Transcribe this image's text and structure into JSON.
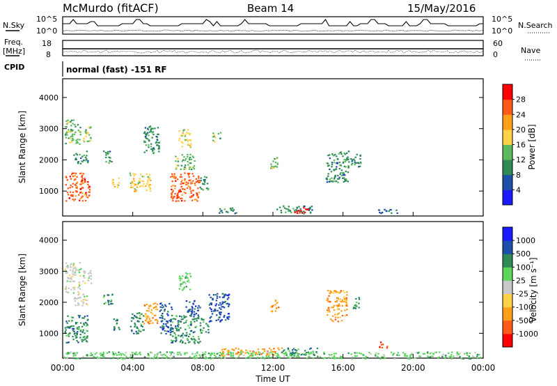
{
  "header": {
    "station": "McMurdo (fitACF)",
    "beam": "Beam 14",
    "date": "15/May/2016"
  },
  "summary": {
    "nsky_label": "N.Sky",
    "nsky_ticks": [
      "10^5",
      "10^0"
    ],
    "nsearch_label": "N.Search",
    "nsearch_ticks": [
      "10^5",
      "10^0"
    ],
    "freq_label": "Freq.",
    "freq_unit": "[MHz]",
    "freq_ticks": [
      "18",
      "8"
    ],
    "nave_label": "Nave",
    "nave_ticks": [
      "60",
      "0"
    ],
    "cpid_label": "CPID",
    "cpid_value": "normal (fast) -151 RF"
  },
  "colors": {
    "power": [
      "#1a1aff",
      "#1e4fa8",
      "#2e8b57",
      "#5cb85c",
      "#ffd24a",
      "#ff9f1a",
      "#ff5a1a",
      "#ff0000"
    ],
    "velocity": [
      "#ff0000",
      "#ff5a1a",
      "#ff9f1a",
      "#ffd24a",
      "#c8c8c8",
      "#5cd65c",
      "#2e8b57",
      "#1e4fa8",
      "#1a1aff"
    ]
  },
  "chart_data": [
    {
      "type": "heatmap",
      "name": "power",
      "ylabel": "Slant Range [km]",
      "xlabel": "Time UT",
      "y_ticks": [
        1000,
        2000,
        3000,
        4000
      ],
      "ylim": [
        200,
        4600
      ],
      "xlim": [
        0,
        24
      ],
      "colorbar_label": "Power [dB]",
      "colorbar_ticks": [
        "28",
        "24",
        "20",
        "16",
        "12",
        "8",
        "4"
      ],
      "clusters": [
        {
          "t0": 0.1,
          "t1": 1.5,
          "r0": 700,
          "r1": 1600,
          "c": 6
        },
        {
          "t0": 0.1,
          "t1": 1.0,
          "r0": 2500,
          "r1": 3300,
          "c": 3
        },
        {
          "t0": 0.6,
          "t1": 1.4,
          "r0": 1900,
          "r1": 2300,
          "c": 2
        },
        {
          "t0": 1.1,
          "t1": 1.6,
          "r0": 2600,
          "r1": 3100,
          "c": 3
        },
        {
          "t0": 2.3,
          "t1": 2.8,
          "r0": 1900,
          "r1": 2300,
          "c": 2
        },
        {
          "t0": 2.8,
          "t1": 3.2,
          "r0": 1100,
          "r1": 1500,
          "c": 4
        },
        {
          "t0": 3.8,
          "t1": 5.0,
          "r0": 1000,
          "r1": 1600,
          "c": 4
        },
        {
          "t0": 4.6,
          "t1": 5.5,
          "r0": 2200,
          "r1": 3100,
          "c": 2
        },
        {
          "t0": 6.1,
          "t1": 7.8,
          "r0": 700,
          "r1": 1600,
          "c": 6
        },
        {
          "t0": 6.4,
          "t1": 7.5,
          "r0": 1700,
          "r1": 2200,
          "c": 3
        },
        {
          "t0": 6.6,
          "t1": 7.3,
          "r0": 2400,
          "r1": 3000,
          "c": 4
        },
        {
          "t0": 7.8,
          "t1": 8.3,
          "r0": 1000,
          "r1": 1500,
          "c": 2
        },
        {
          "t0": 8.5,
          "t1": 9.0,
          "r0": 2600,
          "r1": 2900,
          "c": 3
        },
        {
          "t0": 8.8,
          "t1": 10.0,
          "r0": 300,
          "r1": 500,
          "c": 2
        },
        {
          "t0": 11.8,
          "t1": 12.3,
          "r0": 1700,
          "r1": 2100,
          "c": 3
        },
        {
          "t0": 12.2,
          "t1": 14.2,
          "r0": 300,
          "r1": 550,
          "c": 2
        },
        {
          "t0": 13.2,
          "t1": 14.0,
          "r0": 300,
          "r1": 500,
          "c": 7
        },
        {
          "t0": 15.0,
          "t1": 16.3,
          "r0": 1300,
          "r1": 2300,
          "c": 2
        },
        {
          "t0": 16.3,
          "t1": 17.0,
          "r0": 1800,
          "r1": 2200,
          "c": 2
        },
        {
          "t0": 18.0,
          "t1": 19.2,
          "r0": 300,
          "r1": 450,
          "c": 1
        }
      ]
    },
    {
      "type": "heatmap",
      "name": "velocity",
      "ylabel": "Slant Range [km]",
      "xlabel": "Time UT",
      "y_ticks": [
        1000,
        2000,
        3000,
        4000
      ],
      "x_ticks": [
        "00:00",
        "04:00",
        "08:00",
        "12:00",
        "16:00",
        "20:00",
        "00:00"
      ],
      "ylim": [
        200,
        4600
      ],
      "xlim": [
        0,
        24
      ],
      "colorbar_label": "Velocity [m s⁻¹]",
      "colorbar_ticks": [
        "1000",
        "500",
        "100",
        "25",
        "-25",
        "-100",
        "-500",
        "-1000"
      ],
      "clusters": [
        {
          "t0": 0.1,
          "t1": 1.4,
          "r0": 700,
          "r1": 1600,
          "c": 6
        },
        {
          "t0": 0.1,
          "t1": 1.0,
          "r0": 2300,
          "r1": 3300,
          "c": 4
        },
        {
          "t0": 0.6,
          "t1": 1.4,
          "r0": 1900,
          "r1": 2300,
          "c": 4
        },
        {
          "t0": 1.1,
          "t1": 1.6,
          "r0": 2600,
          "r1": 3100,
          "c": 4
        },
        {
          "t0": 2.3,
          "t1": 2.8,
          "r0": 1900,
          "r1": 2300,
          "c": 6
        },
        {
          "t0": 2.8,
          "t1": 3.2,
          "r0": 1100,
          "r1": 1500,
          "c": 6
        },
        {
          "t0": 3.8,
          "t1": 4.6,
          "r0": 1000,
          "r1": 1700,
          "c": 6
        },
        {
          "t0": 4.6,
          "t1": 5.4,
          "r0": 1300,
          "r1": 2000,
          "c": 2
        },
        {
          "t0": 5.5,
          "t1": 6.2,
          "r0": 1000,
          "r1": 2000,
          "c": 7
        },
        {
          "t0": 6.1,
          "t1": 7.8,
          "r0": 700,
          "r1": 1600,
          "c": 6
        },
        {
          "t0": 6.6,
          "t1": 7.3,
          "r0": 2400,
          "r1": 3000,
          "c": 5
        },
        {
          "t0": 7.0,
          "t1": 7.8,
          "r0": 1600,
          "r1": 2100,
          "c": 7
        },
        {
          "t0": 7.8,
          "t1": 8.3,
          "r0": 1000,
          "r1": 1500,
          "c": 6
        },
        {
          "t0": 8.3,
          "t1": 9.5,
          "r0": 1400,
          "r1": 2300,
          "c": 7
        },
        {
          "t0": 9.0,
          "t1": 12.5,
          "r0": 300,
          "r1": 550,
          "c": 2
        },
        {
          "t0": 11.8,
          "t1": 12.3,
          "r0": 1700,
          "r1": 2100,
          "c": 2
        },
        {
          "t0": 12.5,
          "t1": 14.5,
          "r0": 300,
          "r1": 550,
          "c": 6
        },
        {
          "t0": 15.0,
          "t1": 16.2,
          "r0": 1400,
          "r1": 2400,
          "c": 2
        },
        {
          "t0": 16.5,
          "t1": 16.9,
          "r0": 1800,
          "r1": 2200,
          "c": 6
        },
        {
          "t0": 18.0,
          "t1": 18.5,
          "r0": 550,
          "r1": 750,
          "c": 1
        },
        {
          "t0": 0.0,
          "t1": 24.0,
          "r0": 200,
          "r1": 420,
          "c": 5
        }
      ]
    }
  ]
}
